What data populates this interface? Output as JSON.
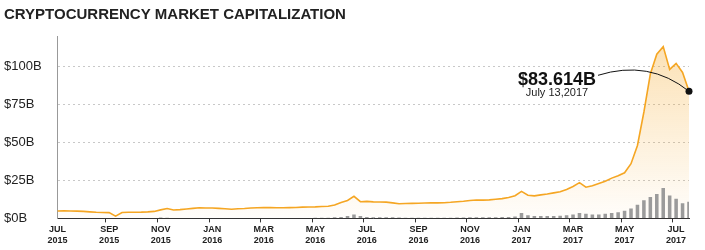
{
  "chart_data": {
    "type": "line",
    "title": "CRYPTOCURRENCY MARKET CAPITALIZATION",
    "categories": [
      "JUL 2015",
      null,
      null,
      null,
      null,
      null,
      null,
      null,
      "SEP 2015",
      null,
      null,
      null,
      null,
      null,
      null,
      null,
      "NOV 2015",
      null,
      null,
      null,
      null,
      null,
      null,
      null,
      "JAN 2016",
      null,
      null,
      null,
      null,
      null,
      null,
      null,
      "MAR 2016",
      null,
      null,
      null,
      null,
      null,
      null,
      null,
      "MAY 2016",
      null,
      null,
      null,
      null,
      null,
      null,
      null,
      "JUL 2016",
      null,
      null,
      null,
      null,
      null,
      null,
      null,
      "SEP 2016",
      null,
      null,
      null,
      null,
      null,
      null,
      null,
      "NOV 2016",
      null,
      null,
      null,
      null,
      null,
      null,
      null,
      "JAN 2017",
      null,
      null,
      null,
      null,
      null,
      null,
      null,
      "MAR 2017",
      null,
      null,
      null,
      null,
      null,
      null,
      null,
      "MAY 2017",
      null,
      null,
      null,
      null,
      null,
      null,
      null,
      "JUL 2017",
      null,
      null
    ],
    "series": [
      {
        "color": "#f5a623",
        "values": [
          4.9,
          5.0,
          4.9,
          4.8,
          4.6,
          4.3,
          4.0,
          3.9,
          3.8,
          1.5,
          3.9,
          4.0,
          4.0,
          4.1,
          4.3,
          4.6,
          5.6,
          6.5,
          5.5,
          5.8,
          6.2,
          6.6,
          7.0,
          6.8,
          6.8,
          6.6,
          6.3,
          6.0,
          6.3,
          6.5,
          6.8,
          7.0,
          7.2,
          7.1,
          7.0,
          7.0,
          7.1,
          7.2,
          7.4,
          7.5,
          7.6,
          7.8,
          8.0,
          8.8,
          10.5,
          11.8,
          14.5,
          11.0,
          11.2,
          10.9,
          10.8,
          10.7,
          10.2,
          9.6,
          9.8,
          9.9,
          10.0,
          10.1,
          10.2,
          10.2,
          10.3,
          10.6,
          11.0,
          11.3,
          11.8,
          12.1,
          12.0,
          12.2,
          12.6,
          13.0,
          13.8,
          14.9,
          17.8,
          15.2,
          14.8,
          15.5,
          16.0,
          16.8,
          17.5,
          19.0,
          21.0,
          23.5,
          20.5,
          21.5,
          23.0,
          24.5,
          26.5,
          28.0,
          30.0,
          36.0,
          48.0,
          70.0,
          95.0,
          108.0,
          113.0,
          98.0,
          102.0,
          96.0,
          83.614
        ]
      },
      {
        "type": "bar",
        "color": "#9b9b9b",
        "values": [
          0.2,
          0.2,
          0.2,
          0.2,
          0.3,
          0.2,
          0.2,
          0.2,
          0.2,
          0.2,
          0.2,
          0.2,
          0.2,
          0.2,
          0.2,
          0.3,
          0.6,
          0.5,
          0.3,
          0.3,
          0.3,
          0.3,
          0.3,
          0.3,
          0.3,
          0.3,
          0.3,
          0.3,
          0.3,
          0.3,
          0.3,
          0.3,
          0.3,
          0.3,
          0.3,
          0.3,
          0.3,
          0.3,
          0.3,
          0.3,
          0.4,
          0.4,
          0.5,
          0.8,
          1.0,
          1.5,
          2.5,
          1.5,
          1.0,
          0.8,
          0.8,
          0.7,
          0.8,
          0.6,
          0.5,
          0.5,
          0.5,
          0.5,
          0.5,
          0.5,
          0.5,
          0.5,
          0.6,
          0.6,
          0.7,
          0.7,
          0.7,
          0.8,
          0.8,
          0.9,
          1.0,
          1.2,
          3.5,
          2.0,
          1.5,
          1.5,
          1.5,
          1.6,
          1.8,
          2.0,
          2.5,
          3.5,
          3.0,
          2.5,
          2.5,
          3.0,
          3.5,
          4.0,
          5.0,
          6.5,
          9.0,
          12.0,
          14.0,
          16.0,
          20.0,
          15.0,
          13.0,
          10.0,
          11.0
        ]
      }
    ],
    "ylim": [
      0,
      120
    ],
    "yticks": [
      {
        "value": 0,
        "label": "$0B"
      },
      {
        "value": 25,
        "label": "$25B"
      },
      {
        "value": 50,
        "label": "$50B"
      },
      {
        "value": 75,
        "label": "$75B"
      },
      {
        "value": 100,
        "label": "$100B"
      }
    ],
    "grid": true,
    "annotation": {
      "text": "$83.614B",
      "date": "July 13,2017",
      "value": 83.614
    }
  }
}
